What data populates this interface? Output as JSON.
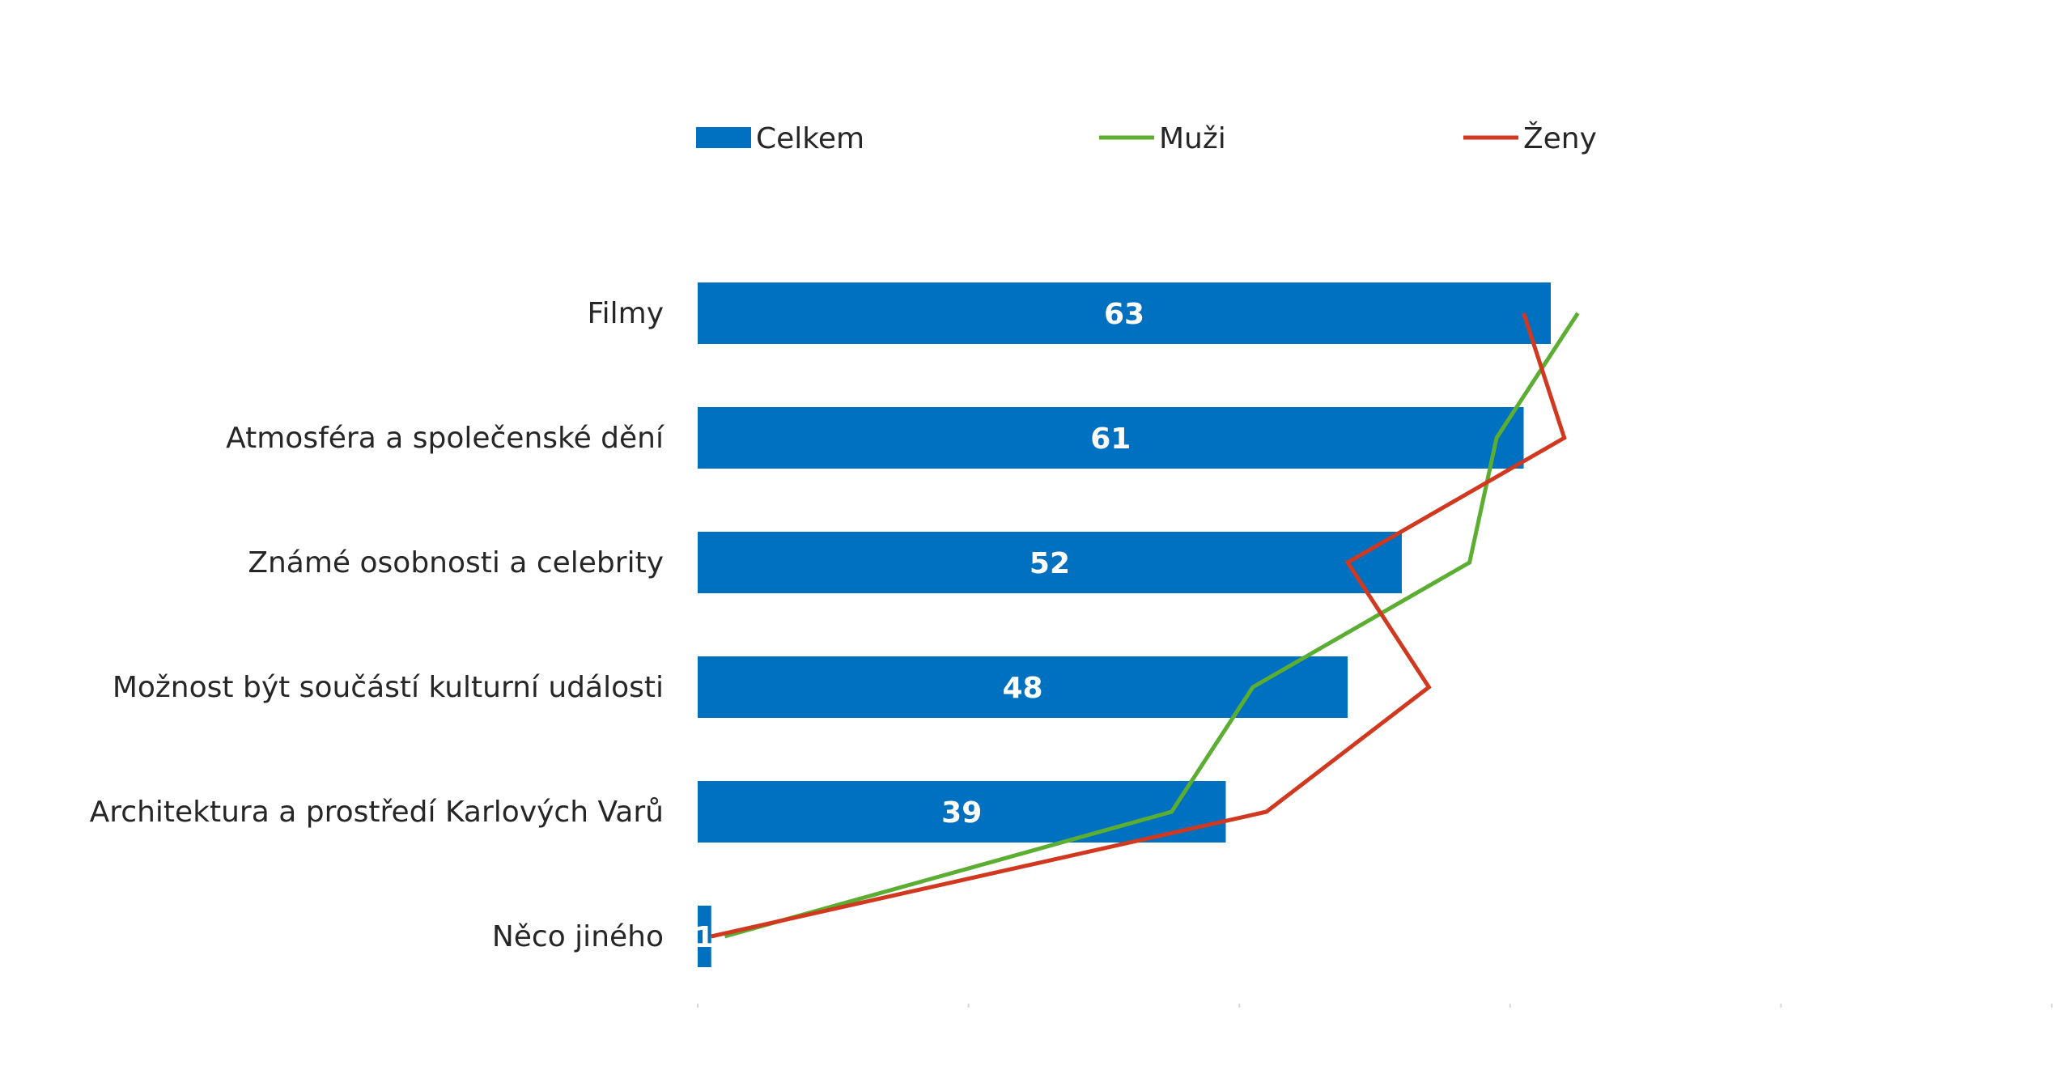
{
  "chart_data": {
    "type": "bar",
    "orientation": "horizontal",
    "categories": [
      "Filmy",
      "Atmosféra a společenské dění",
      "Známé osobnosti a celebrity",
      "Možnost být součástí kulturní události",
      "Architektura a prostředí Karlových Varů",
      "Něco jiného"
    ],
    "series": [
      {
        "name": "Celkem",
        "type": "bar",
        "color": "#0070C0",
        "values": [
          63,
          61,
          52,
          48,
          39,
          1
        ]
      },
      {
        "name": "Muži",
        "type": "line",
        "color": "#5BAE32",
        "values": [
          65,
          59,
          57,
          41,
          35,
          2
        ]
      },
      {
        "name": "Ženy",
        "type": "line",
        "color": "#D0391F",
        "values": [
          61,
          64,
          48,
          54,
          42,
          1
        ]
      }
    ],
    "data_labels": [
      "63",
      "61",
      "52",
      "48",
      "39",
      "1"
    ],
    "xlim": [
      0,
      100
    ],
    "legend_position": "top",
    "grid": false
  }
}
